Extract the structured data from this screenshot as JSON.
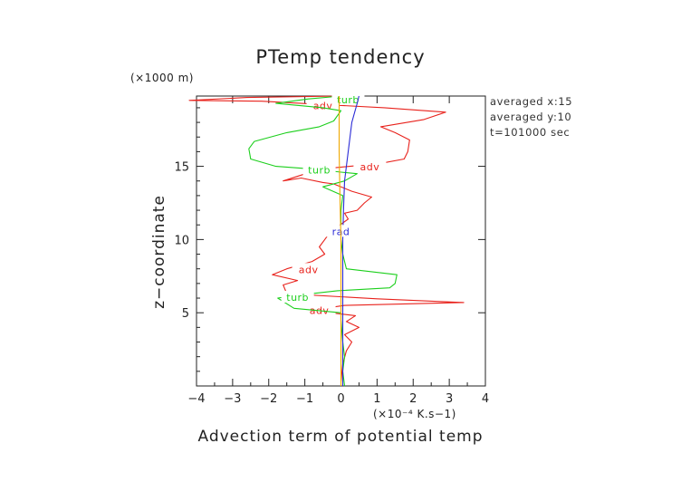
{
  "chart_data": {
    "type": "line",
    "title": "PTemp tendency",
    "xlabel": "Advection term of potential temp",
    "ylabel": "z−coordinate",
    "x_unit": "(×10⁻⁴ K.s−1)",
    "y_unit": "(×1000 m)",
    "xlim": [
      -4,
      4
    ],
    "ylim": [
      0,
      19.8
    ],
    "x_ticks": [
      "−4",
      "−3",
      "−2",
      "−1",
      "0",
      "1",
      "2",
      "3",
      "4"
    ],
    "y_ticks": [
      "5",
      "10",
      "15"
    ],
    "grid": false,
    "annotations": [
      "averaged  x:15",
      "averaged  y:10",
      "t=101000 sec"
    ],
    "series": [
      {
        "name": "adv",
        "color": "#e8221c",
        "labels": [
          {
            "x": -0.5,
            "y": 19.1
          },
          {
            "x": 0.8,
            "y": 14.9
          },
          {
            "x": -0.9,
            "y": 7.9
          },
          {
            "x": -0.6,
            "y": 5.1
          }
        ],
        "points": [
          [
            0.0,
            0.3
          ],
          [
            0.05,
            1.5
          ],
          [
            0.15,
            2.4
          ],
          [
            0.3,
            3.0
          ],
          [
            0.1,
            3.5
          ],
          [
            0.5,
            4.0
          ],
          [
            0.15,
            4.4
          ],
          [
            0.4,
            4.8
          ],
          [
            -0.3,
            5.0
          ],
          [
            -1.0,
            5.1
          ],
          [
            0.1,
            5.5
          ],
          [
            3.4,
            5.7
          ],
          [
            1.0,
            5.95
          ],
          [
            -1.5,
            6.3
          ],
          [
            -1.6,
            6.9
          ],
          [
            -1.2,
            7.2
          ],
          [
            -1.9,
            7.6
          ],
          [
            -1.5,
            8.0
          ],
          [
            -0.8,
            8.5
          ],
          [
            -0.45,
            9.0
          ],
          [
            -0.6,
            9.5
          ],
          [
            -0.45,
            10.0
          ],
          [
            -0.3,
            10.5
          ],
          [
            0.2,
            11.4
          ],
          [
            0.1,
            11.8
          ],
          [
            0.45,
            12.0
          ],
          [
            0.65,
            12.5
          ],
          [
            0.85,
            12.9
          ],
          [
            0.3,
            13.3
          ],
          [
            -0.2,
            13.8
          ],
          [
            -0.5,
            13.9
          ],
          [
            -1.1,
            14.2
          ],
          [
            -1.6,
            14.0
          ],
          [
            -0.6,
            14.8
          ],
          [
            1.1,
            15.2
          ],
          [
            1.75,
            15.5
          ],
          [
            1.85,
            16.0
          ],
          [
            1.9,
            16.8
          ],
          [
            1.5,
            17.3
          ],
          [
            1.1,
            17.7
          ],
          [
            2.3,
            18.2
          ],
          [
            2.9,
            18.7
          ],
          [
            1.2,
            19.0
          ],
          [
            -1.1,
            19.3
          ],
          [
            -2.2,
            19.45
          ],
          [
            -4.2,
            19.5
          ],
          [
            -2.6,
            19.7
          ],
          [
            0.0,
            19.8
          ]
        ]
      },
      {
        "name": "turb",
        "color": "#1ccf1c",
        "labels": [
          {
            "x": -0.6,
            "y": 14.7
          },
          {
            "x": -1.2,
            "y": 6.0
          },
          {
            "x": 0.2,
            "y": 19.5
          }
        ],
        "points": [
          [
            0.1,
            0.0
          ],
          [
            0.05,
            1.0
          ],
          [
            0.1,
            2.0
          ],
          [
            0.05,
            3.0
          ],
          [
            0.0,
            4.5
          ],
          [
            0.0,
            5.0
          ],
          [
            -1.3,
            5.3
          ],
          [
            -1.75,
            6.0
          ],
          [
            -1.2,
            6.2
          ],
          [
            -0.1,
            6.5
          ],
          [
            1.35,
            6.7
          ],
          [
            1.5,
            7.0
          ],
          [
            1.55,
            7.6
          ],
          [
            0.5,
            7.9
          ],
          [
            0.15,
            8.0
          ],
          [
            0.05,
            9.0
          ],
          [
            0.0,
            10.0
          ],
          [
            0.0,
            12.0
          ],
          [
            0.05,
            13.0
          ],
          [
            -0.5,
            13.6
          ],
          [
            0.1,
            14.0
          ],
          [
            0.45,
            14.5
          ],
          [
            0.0,
            14.6
          ],
          [
            -0.7,
            14.8
          ],
          [
            -1.8,
            15.0
          ],
          [
            -2.5,
            15.5
          ],
          [
            -2.55,
            16.2
          ],
          [
            -2.4,
            16.7
          ],
          [
            -1.5,
            17.3
          ],
          [
            -0.6,
            17.7
          ],
          [
            -0.2,
            18.1
          ],
          [
            0.0,
            18.8
          ],
          [
            -0.5,
            19.0
          ],
          [
            -1.8,
            19.3
          ],
          [
            -0.9,
            19.6
          ],
          [
            0.0,
            19.8
          ]
        ]
      },
      {
        "name": "rad",
        "color": "#2b2bd6",
        "labels": [
          {
            "x": 0.0,
            "y": 10.5
          }
        ],
        "points": [
          [
            0.05,
            0.0
          ],
          [
            0.05,
            2.0
          ],
          [
            0.05,
            4.0
          ],
          [
            0.05,
            6.0
          ],
          [
            0.05,
            8.0
          ],
          [
            0.05,
            10.0
          ],
          [
            0.07,
            12.0
          ],
          [
            0.1,
            14.0
          ],
          [
            0.2,
            16.0
          ],
          [
            0.3,
            18.0
          ],
          [
            0.45,
            19.3
          ],
          [
            0.5,
            19.8
          ]
        ]
      },
      {
        "name": "",
        "color": "#f0a800",
        "labels": [],
        "points": [
          [
            0.0,
            0.0
          ],
          [
            0.0,
            5.0
          ],
          [
            0.0,
            10.0
          ],
          [
            -0.02,
            12.0
          ],
          [
            -0.05,
            16.0
          ],
          [
            -0.05,
            19.8
          ]
        ]
      }
    ]
  }
}
